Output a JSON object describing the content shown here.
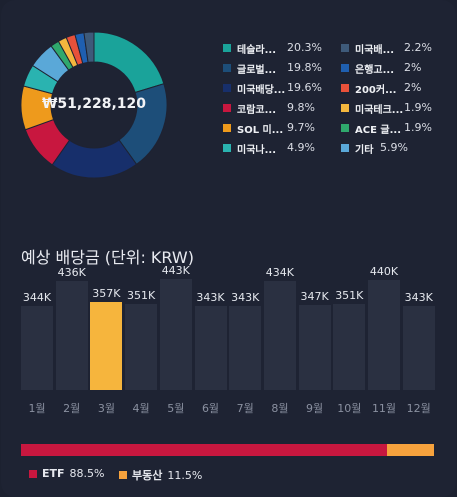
{
  "donut": {
    "total_label": "₩51,228,120",
    "slices": [
      {
        "name": "테슬라...",
        "pct": 20.3,
        "value_text": "20.3%",
        "color": "#1aa39a"
      },
      {
        "name": "글로벌...",
        "pct": 19.8,
        "value_text": "19.8%",
        "color": "#1d4e79"
      },
      {
        "name": "미국배당...",
        "pct": 19.6,
        "value_text": "19.6%",
        "color": "#172f6b"
      },
      {
        "name": "코람코...",
        "pct": 9.8,
        "value_text": "9.8%",
        "color": "#c8173f"
      },
      {
        "name": "SOL 미...",
        "pct": 9.7,
        "value_text": "9.7%",
        "color": "#ee9a1c"
      },
      {
        "name": "미국나...",
        "pct": 4.9,
        "value_text": "4.9%",
        "color": "#2ab3b0"
      },
      {
        "name": "기타",
        "pct": 5.9,
        "value_text": "5.9%",
        "color": "#5aa8d8"
      },
      {
        "name": "ACE 글...",
        "pct": 1.9,
        "value_text": "1.9%",
        "color": "#2fa86d"
      },
      {
        "name": "미국테크...",
        "pct": 1.9,
        "value_text": "1.9%",
        "color": "#f4b73e"
      },
      {
        "name": "200커...",
        "pct": 2.0,
        "value_text": "2%",
        "color": "#e8513a"
      },
      {
        "name": "은행고...",
        "pct": 2.0,
        "value_text": "2%",
        "color": "#1f5fb0"
      },
      {
        "name": "미국배...",
        "pct": 2.2,
        "value_text": "2.2%",
        "color": "#3e5a7a"
      }
    ]
  },
  "legend": {
    "left": [
      {
        "name": "테슬라...",
        "value": "20.3%",
        "color": "#1aa39a"
      },
      {
        "name": "글로벌...",
        "value": "19.8%",
        "color": "#1d4e79"
      },
      {
        "name": "미국배당...",
        "value": "19.6%",
        "color": "#172f6b"
      },
      {
        "name": "코람코...",
        "value": "9.8%",
        "color": "#c8173f"
      },
      {
        "name": "SOL 미...",
        "value": "9.7%",
        "color": "#ee9a1c"
      },
      {
        "name": "미국나...",
        "value": "4.9%",
        "color": "#2ab3b0"
      }
    ],
    "right": [
      {
        "name": "미국배...",
        "value": "2.2%",
        "color": "#3e5a7a"
      },
      {
        "name": "은행고...",
        "value": "2%",
        "color": "#1f5fb0"
      },
      {
        "name": "200커...",
        "value": "2%",
        "color": "#e8513a"
      },
      {
        "name": "미국테크...",
        "value": "1.9%",
        "color": "#f4b73e"
      },
      {
        "name": "ACE 글...",
        "value": "1.9%",
        "color": "#2fa86d"
      },
      {
        "name": "기타",
        "value": "5.9%",
        "color": "#5aa8d8"
      }
    ]
  },
  "dividend": {
    "title": "예상 배당금 (단위: KRW)"
  },
  "chart_data": [
    {
      "type": "bar",
      "title": "예상 배당금 (단위: KRW)",
      "categories": [
        "1월",
        "2월",
        "3월",
        "4월",
        "5월",
        "6월",
        "7월",
        "8월",
        "9월",
        "10월",
        "11월",
        "12월"
      ],
      "values": [
        344000,
        436000,
        357000,
        351000,
        443000,
        343000,
        343000,
        434000,
        347000,
        351000,
        440000,
        343000
      ],
      "value_labels": [
        "344K",
        "436K",
        "357K",
        "351K",
        "443K",
        "343K",
        "343K",
        "434K",
        "347K",
        "351K",
        "440K",
        "343K"
      ],
      "highlight_index": 2,
      "bar_color": "#2a3041",
      "highlight_color": "#f6b53d"
    }
  ],
  "ratio": {
    "segments": [
      {
        "name": "ETF",
        "value": 88.5,
        "value_text": "88.5%",
        "color": "#c8173f"
      },
      {
        "name": "부동산",
        "value": 11.5,
        "value_text": "11.5%",
        "color": "#f6a23d"
      }
    ]
  }
}
